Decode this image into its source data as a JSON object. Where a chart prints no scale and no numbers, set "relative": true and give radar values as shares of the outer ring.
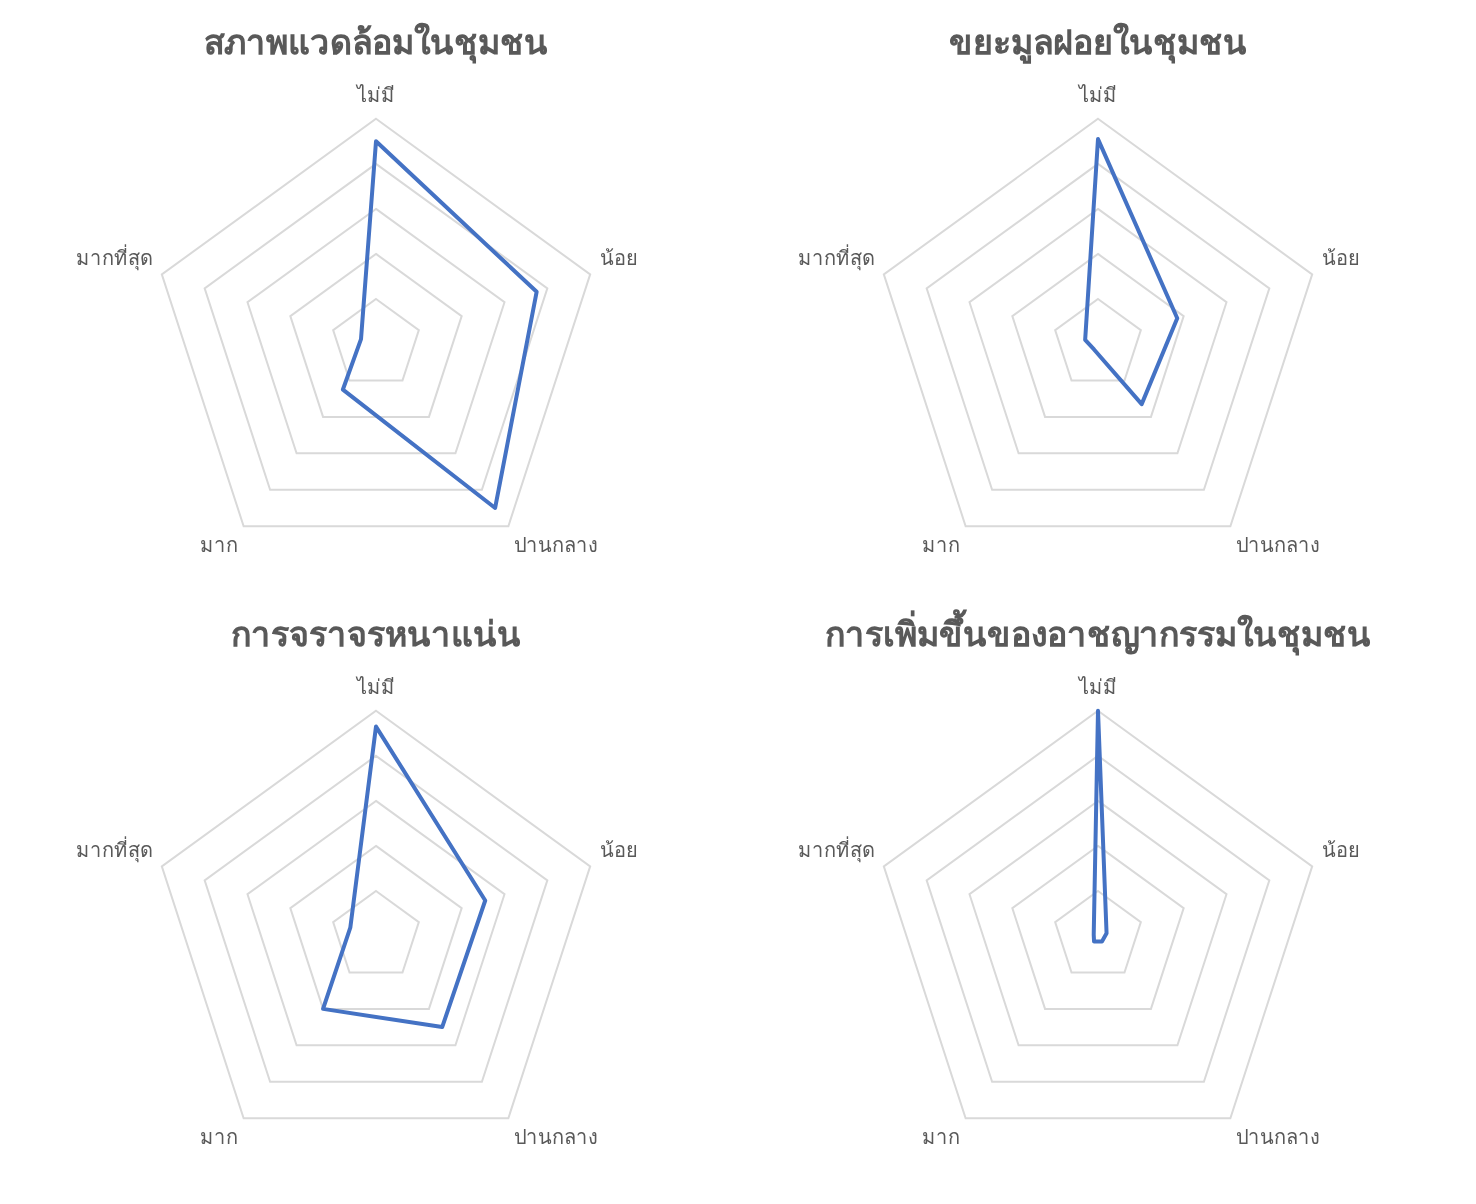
{
  "chart_data": [
    {
      "type": "radar",
      "title": "สภาพแวดล้อมในชุมชน",
      "categories": [
        "ไม่มี",
        "น้อย",
        "ปานกลาง",
        "มาก",
        "มากที่สุด"
      ],
      "relative": true,
      "grid": true,
      "series": [
        {
          "color": "#4472c4",
          "values": [
            0.9,
            0.75,
            0.9,
            0.25,
            0.07
          ]
        }
      ]
    },
    {
      "type": "radar",
      "title": "ขยะมูลฝอยในชุมชน",
      "categories": [
        "ไม่มี",
        "น้อย",
        "ปานกลาง",
        "มาก",
        "มากที่สุด"
      ],
      "relative": true,
      "grid": true,
      "series": [
        {
          "color": "#4472c4",
          "values": [
            0.91,
            0.37,
            0.33,
            0.03,
            0.06
          ]
        }
      ]
    },
    {
      "type": "radar",
      "title": "การจราจรหนาแน่น",
      "categories": [
        "ไม่มี",
        "น้อย",
        "ปานกลาง",
        "มาก",
        "มากที่สุด"
      ],
      "relative": true,
      "grid": true,
      "series": [
        {
          "color": "#4472c4",
          "values": [
            0.93,
            0.51,
            0.5,
            0.4,
            0.12
          ]
        }
      ]
    },
    {
      "type": "radar",
      "title": "การเพิ่มขึ้นของอาชญากรรมในชุมชน",
      "categories": [
        "ไม่มี",
        "น้อย",
        "ปานกลาง",
        "มาก",
        "มากที่สุด"
      ],
      "relative": true,
      "grid": true,
      "series": [
        {
          "color": "#4472c4",
          "values": [
            1,
            0.04,
            0.03,
            0.03,
            0.02
          ]
        }
      ]
    }
  ]
}
